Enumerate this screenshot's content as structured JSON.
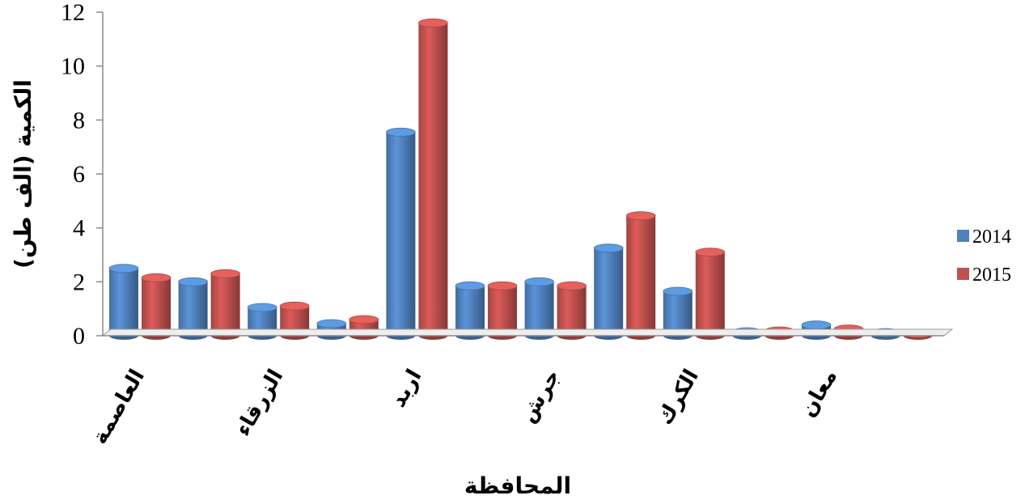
{
  "chart_data": {
    "type": "bar",
    "title": "",
    "xlabel": "المحافظة",
    "ylabel": "الكمية (الف طن)",
    "ylim": [
      0,
      12
    ],
    "yticks": [
      "0",
      "2",
      "4",
      "6",
      "8",
      "10",
      "12"
    ],
    "categories": [
      "العاصمة",
      "",
      "الزرقاء",
      "",
      "اربد",
      "",
      "جرش",
      "",
      "الكرك",
      "",
      "معان",
      ""
    ],
    "series": [
      {
        "name": "2014",
        "color": "#4f81bd",
        "values": [
          2.5,
          2.0,
          1.05,
          0.45,
          7.55,
          1.85,
          2.0,
          3.25,
          1.65,
          0.15,
          0.4,
          0.12
        ]
      },
      {
        "name": "2015",
        "color": "#c0504d",
        "values": [
          2.15,
          2.3,
          1.1,
          0.6,
          11.6,
          1.85,
          1.85,
          4.45,
          3.1,
          0.18,
          0.25,
          0.08
        ]
      }
    ],
    "legend": "right",
    "grid": false
  }
}
